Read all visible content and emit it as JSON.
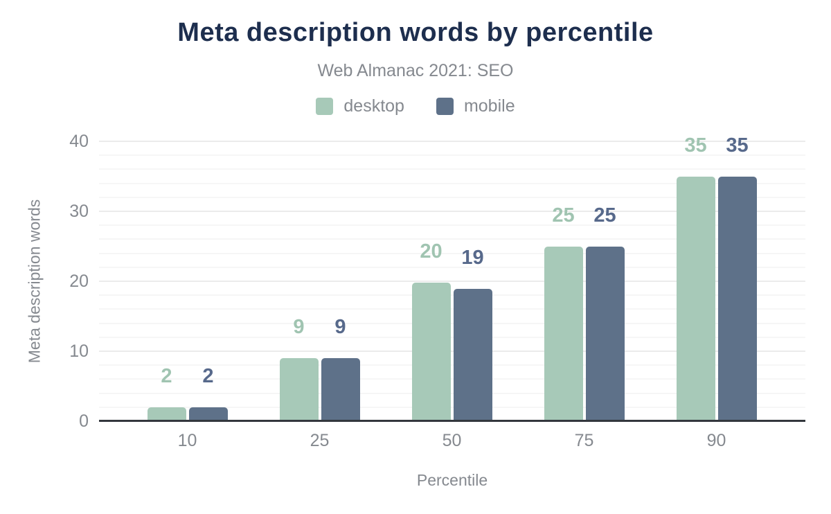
{
  "chart_data": {
    "type": "bar",
    "title": "Meta description words by percentile",
    "subtitle": "Web Almanac 2021: SEO",
    "xlabel": "Percentile",
    "ylabel": "Meta description words",
    "categories": [
      "10",
      "25",
      "50",
      "75",
      "90"
    ],
    "series": [
      {
        "name": "desktop",
        "color": "#a7c9b8",
        "label_color": "#a0c4b1",
        "values": [
          2,
          9,
          19.8,
          25,
          35
        ],
        "labels": [
          "2",
          "9",
          "20",
          "25",
          "35"
        ]
      },
      {
        "name": "mobile",
        "color": "#5e7189",
        "label_color": "#57698b",
        "values": [
          2,
          9,
          18.9,
          25,
          35
        ],
        "labels": [
          "2",
          "9",
          "19",
          "25",
          "35"
        ]
      }
    ],
    "ylim": [
      0,
      40
    ],
    "y_major_ticks": [
      0,
      10,
      20,
      30,
      40
    ],
    "y_minor_step": 2,
    "grid": "on",
    "legend_position": "top-center"
  },
  "colors": {
    "title": "#1d2e4e",
    "axis_text": "#85898f",
    "axis_line": "#33373d",
    "grid_major": "#ebebeb",
    "grid_minor": "#f6f6f6",
    "background": "#ffffff"
  }
}
